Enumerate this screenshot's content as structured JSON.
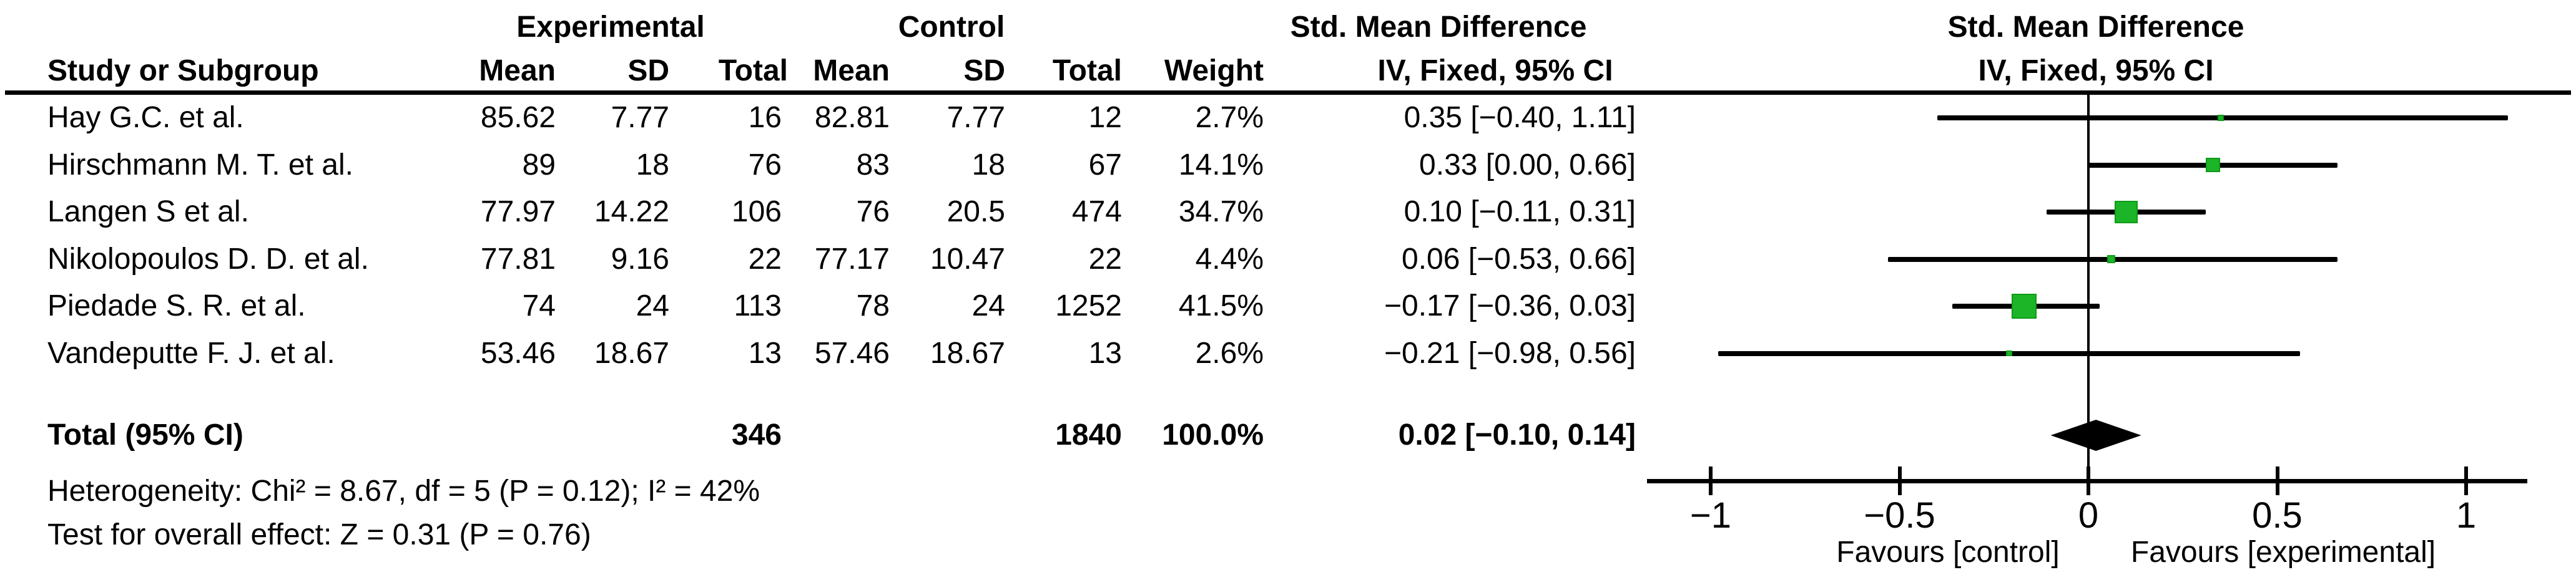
{
  "colors": {
    "effect_square": "#1BB527",
    "effect_square_border": "#0E9A18",
    "ci_line": "#000000",
    "summary_diamond": "#000000",
    "text": "#000000",
    "background": "#FFFFFF"
  },
  "headers": {
    "experimental": "Experimental",
    "control": "Control",
    "smd_left": "Std. Mean Difference",
    "smd_right": "Std. Mean Difference",
    "study": "Study or Subgroup",
    "exp_mean": "Mean",
    "exp_sd": "SD",
    "exp_total": "Total",
    "ctrl_mean": "Mean",
    "ctrl_sd": "SD",
    "ctrl_total": "Total",
    "weight": "Weight",
    "iv_left": "IV, Fixed, 95% CI",
    "iv_right": "IV, Fixed, 95% CI"
  },
  "stats": {
    "heterogeneity": "Heterogeneity: Chi² = 8.67, df = 5 (P = 0.12); I² = 42%",
    "overall_effect": "Test for overall effect: Z = 0.31 (P = 0.76)"
  },
  "chart_data": {
    "type": "scatter",
    "subtype": "forest-plot",
    "effect_measure": "Std. Mean Difference, IV, Fixed, 95% CI",
    "studies": [
      {
        "study": "Hay G.C. et al.",
        "exp_mean": "85.62",
        "exp_sd": "7.77",
        "exp_total": "16",
        "ctrl_mean": "82.81",
        "ctrl_sd": "7.77",
        "ctrl_total": "12",
        "weight": "2.7%",
        "weight_pct": 2.7,
        "ci_text": "0.35 [−0.40, 1.11]",
        "smd": 0.35,
        "ci_low": -0.4,
        "ci_high": 1.11
      },
      {
        "study": "Hirschmann M. T. et al.",
        "exp_mean": "89",
        "exp_sd": "18",
        "exp_total": "76",
        "ctrl_mean": "83",
        "ctrl_sd": "18",
        "ctrl_total": "67",
        "weight": "14.1%",
        "weight_pct": 14.1,
        "ci_text": "0.33 [0.00, 0.66]",
        "smd": 0.33,
        "ci_low": 0.0,
        "ci_high": 0.66
      },
      {
        "study": "Langen S et al.",
        "exp_mean": "77.97",
        "exp_sd": "14.22",
        "exp_total": "106",
        "ctrl_mean": "76",
        "ctrl_sd": "20.5",
        "ctrl_total": "474",
        "weight": "34.7%",
        "weight_pct": 34.7,
        "ci_text": "0.10 [−0.11, 0.31]",
        "smd": 0.1,
        "ci_low": -0.11,
        "ci_high": 0.31
      },
      {
        "study": "Nikolopoulos D. D. et al.",
        "exp_mean": "77.81",
        "exp_sd": "9.16",
        "exp_total": "22",
        "ctrl_mean": "77.17",
        "ctrl_sd": "10.47",
        "ctrl_total": "22",
        "weight": "4.4%",
        "weight_pct": 4.4,
        "ci_text": "0.06 [−0.53, 0.66]",
        "smd": 0.06,
        "ci_low": -0.53,
        "ci_high": 0.66
      },
      {
        "study": "Piedade S. R. et al.",
        "exp_mean": "74",
        "exp_sd": "24",
        "exp_total": "113",
        "ctrl_mean": "78",
        "ctrl_sd": "24",
        "ctrl_total": "1252",
        "weight": "41.5%",
        "weight_pct": 41.5,
        "ci_text": "−0.17 [−0.36, 0.03]",
        "smd": -0.17,
        "ci_low": -0.36,
        "ci_high": 0.03
      },
      {
        "study": "Vandeputte F. J. et al.",
        "exp_mean": "53.46",
        "exp_sd": "18.67",
        "exp_total": "13",
        "ctrl_mean": "57.46",
        "ctrl_sd": "18.67",
        "ctrl_total": "13",
        "weight": "2.6%",
        "weight_pct": 2.6,
        "ci_text": "−0.21 [−0.98, 0.56]",
        "smd": -0.21,
        "ci_low": -0.98,
        "ci_high": 0.56
      }
    ],
    "total": {
      "label": "Total (95% CI)",
      "exp_total": "346",
      "ctrl_total": "1840",
      "weight": "100.0%",
      "ci_text": "0.02 [−0.10, 0.14]",
      "smd": 0.02,
      "ci_low": -0.1,
      "ci_high": 0.14
    },
    "axis": {
      "xlim": [
        -1,
        1
      ],
      "ticks": [
        {
          "v": -1,
          "label": "−1"
        },
        {
          "v": -0.5,
          "label": "−0.5"
        },
        {
          "v": 0,
          "label": "0"
        },
        {
          "v": 0.5,
          "label": "0.5"
        },
        {
          "v": 1,
          "label": "1"
        }
      ],
      "favours_left": "Favours [control]",
      "favours_right": "Favours [experimental]"
    }
  }
}
